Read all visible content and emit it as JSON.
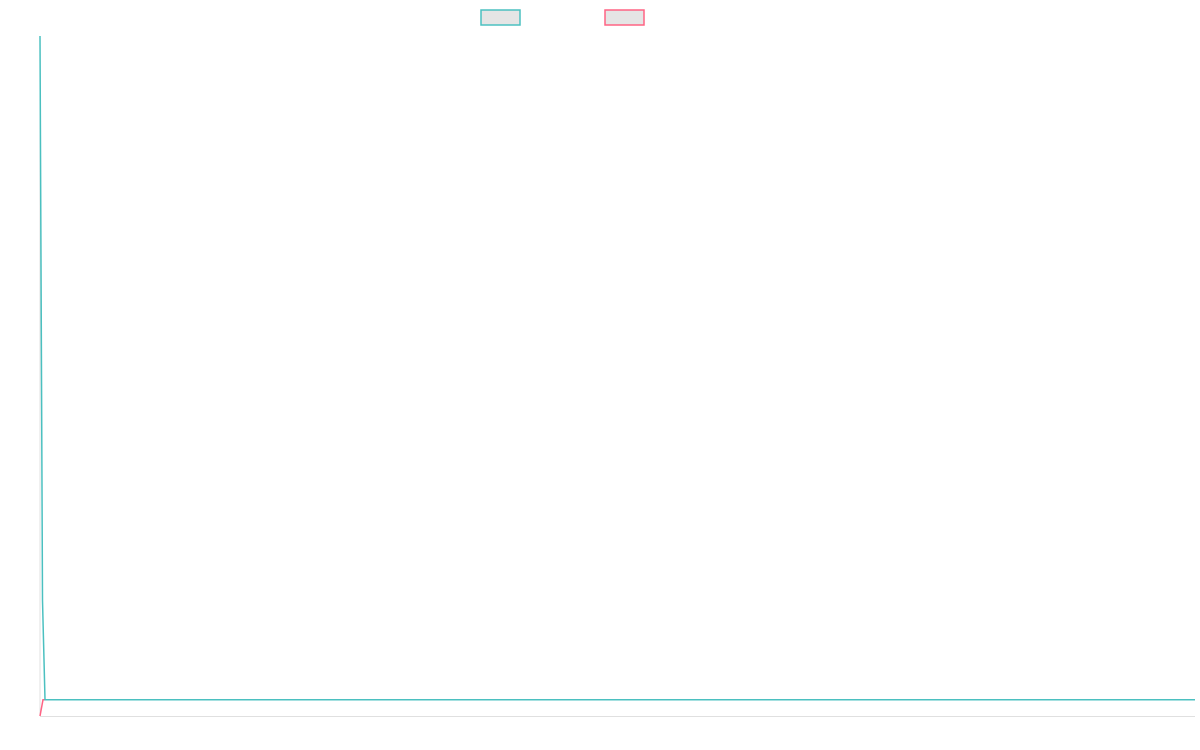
{
  "chart_data": {
    "type": "line",
    "title": "",
    "xlabel": "",
    "ylabel": "",
    "xlim": [
      0,
      460
    ],
    "ylim": [
      0,
      100
    ],
    "grid": false,
    "legend_position": "top",
    "series": [
      {
        "color": "#4bc0c0",
        "x": [
          0,
          1,
          2,
          460
        ],
        "y": [
          100,
          17,
          2.4,
          2.4
        ]
      },
      {
        "color": "#ff6384",
        "x": [
          0,
          1.2,
          460
        ],
        "y": [
          0,
          2.4,
          2.4
        ]
      }
    ],
    "legend_fill": "#e5e5e5",
    "axis_color": "#e0e0e0"
  }
}
